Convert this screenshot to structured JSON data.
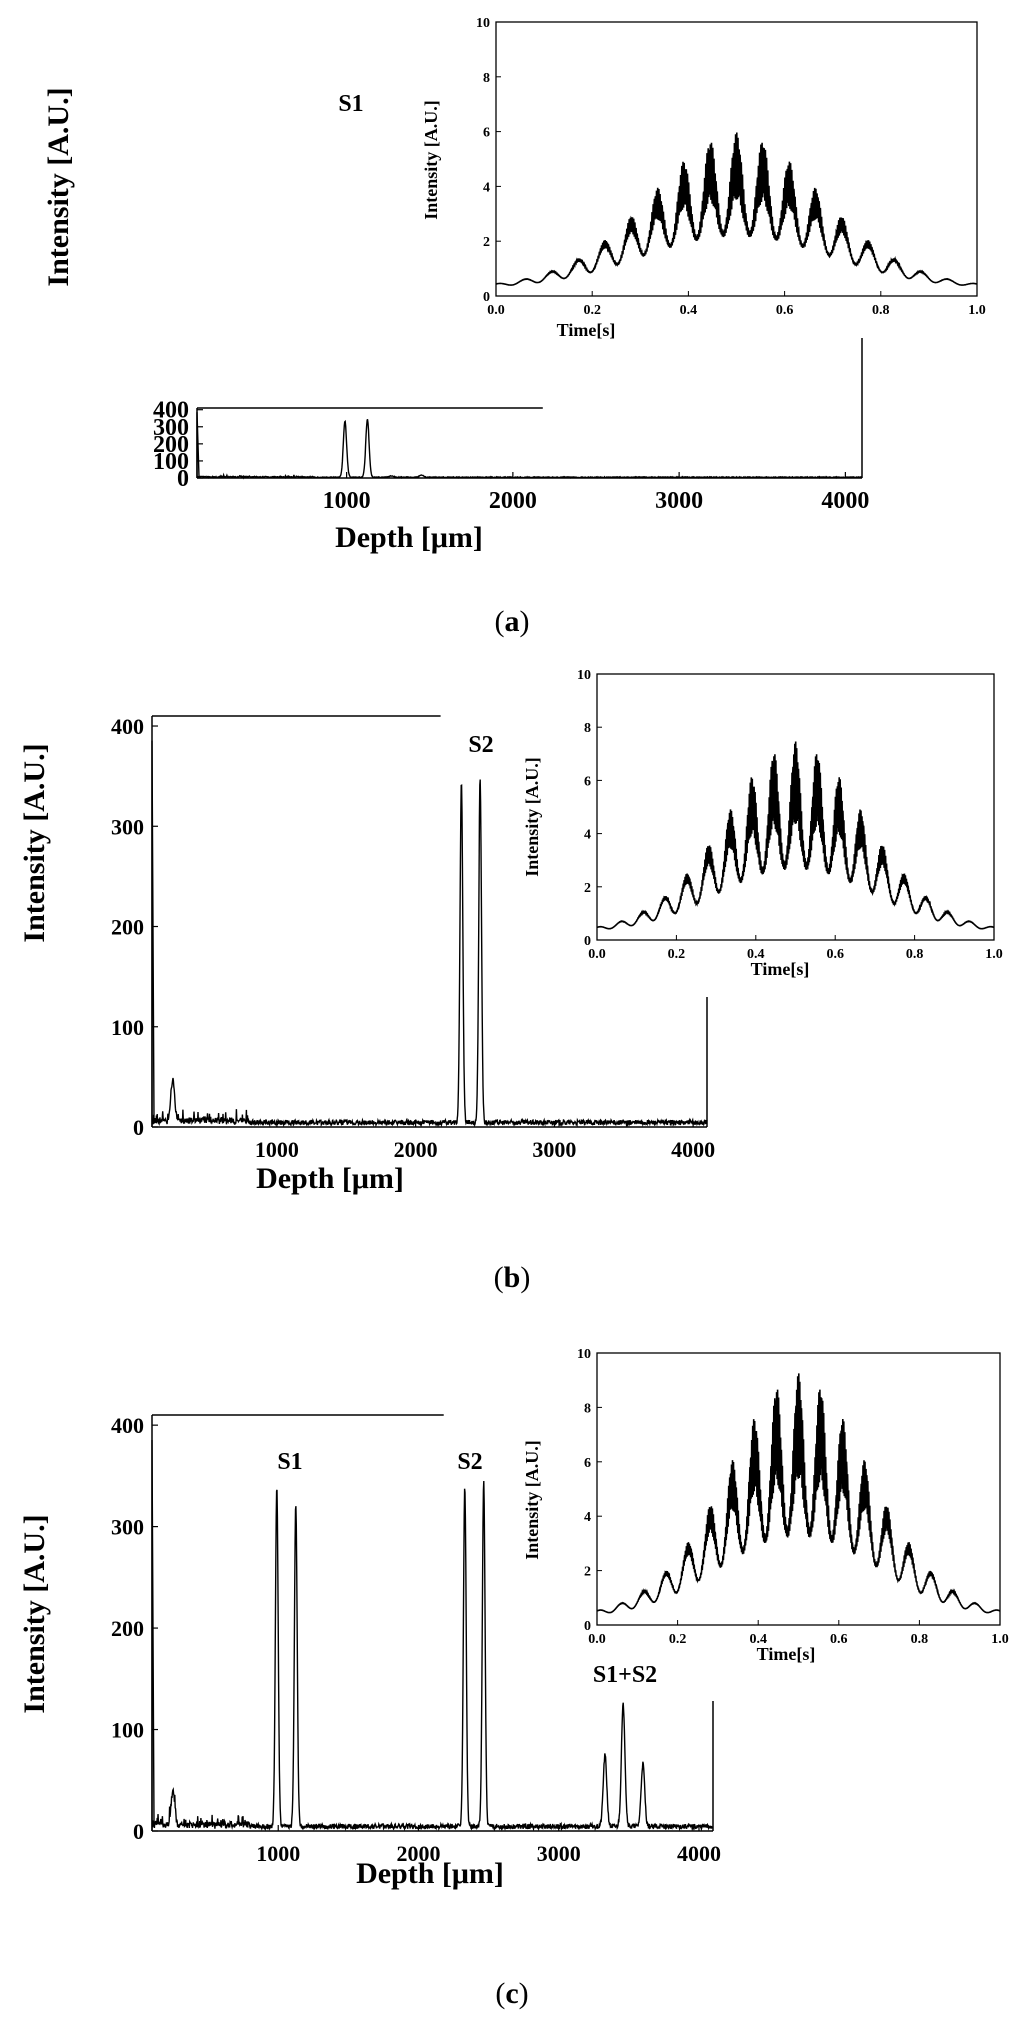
{
  "figure": {
    "panels": [
      {
        "id": "a",
        "caption_open": "(",
        "caption_letter": "a",
        "caption_close": ")"
      },
      {
        "id": "b",
        "caption_open": "(",
        "caption_letter": "b",
        "caption_close": ")"
      },
      {
        "id": "c",
        "caption_open": "(",
        "caption_letter": "c",
        "caption_close": ")"
      }
    ]
  },
  "chart_data": [
    {
      "panel": "a",
      "type": "line",
      "title": "",
      "xlabel": "Depth [μm]",
      "ylabel": "Intensity [A.U.]",
      "xlim": [
        100,
        4100
      ],
      "ylim": [
        0,
        410
      ],
      "xticks": [
        1000,
        2000,
        3000,
        4000
      ],
      "yticks": [
        0,
        100,
        200,
        300,
        400
      ],
      "peaks": [
        {
          "x": 990,
          "y": 330
        },
        {
          "x": 1125,
          "y": 340
        },
        {
          "x": 1450,
          "y": 12
        },
        {
          "x": 1270,
          "y": 8
        }
      ],
      "annotations": [
        {
          "text": "S1",
          "x": 1060,
          "y": 375
        }
      ],
      "inset": {
        "type": "line",
        "xlabel": "Time[s]",
        "ylabel": "Intensity [A.U.]",
        "xlim": [
          0,
          1
        ],
        "ylim": [
          0,
          10
        ],
        "xticks": [
          "0.0",
          "0.2",
          "0.4",
          "0.6",
          "0.8",
          "1.0"
        ],
        "yticks": [
          "0",
          "2",
          "4",
          "6",
          "8",
          "10"
        ],
        "envelope_peak": 3.8,
        "baseline": 0.3,
        "fringe_period": 0.055
      }
    },
    {
      "panel": "b",
      "type": "line",
      "title": "",
      "xlabel": "Depth [μm]",
      "ylabel": "Intensity [A.U.]",
      "xlim": [
        100,
        4100
      ],
      "ylim": [
        0,
        410
      ],
      "xticks": [
        1000,
        2000,
        3000,
        4000
      ],
      "yticks": [
        0,
        100,
        200,
        300,
        400
      ],
      "peaks": [
        {
          "x": 2330,
          "y": 338
        },
        {
          "x": 2465,
          "y": 343
        },
        {
          "x": 250,
          "y": 42
        }
      ],
      "annotations": [
        {
          "text": "S2",
          "x": 2400,
          "y": 378
        }
      ],
      "inset": {
        "type": "line",
        "xlabel": "Time[s]",
        "ylabel": "Intensity [A.U.]",
        "xlim": [
          0,
          1
        ],
        "ylim": [
          0,
          10
        ],
        "xticks": [
          "0.0",
          "0.2",
          "0.4",
          "0.6",
          "0.8",
          "1.0"
        ],
        "yticks": [
          "0",
          "2",
          "4",
          "6",
          "8",
          "10"
        ],
        "envelope_peak": 4.8,
        "baseline": 0.3,
        "fringe_period": 0.055
      }
    },
    {
      "panel": "c",
      "type": "line",
      "title": "",
      "xlabel": "Depth [μm]",
      "ylabel": "Intensity [A.U.]",
      "xlim": [
        100,
        4100
      ],
      "ylim": [
        0,
        410
      ],
      "xticks": [
        1000,
        2000,
        3000,
        4000
      ],
      "yticks": [
        0,
        100,
        200,
        300,
        400
      ],
      "peaks": [
        {
          "x": 990,
          "y": 335
        },
        {
          "x": 1125,
          "y": 318
        },
        {
          "x": 2330,
          "y": 335
        },
        {
          "x": 2465,
          "y": 340
        },
        {
          "x": 3330,
          "y": 70
        },
        {
          "x": 3460,
          "y": 120
        },
        {
          "x": 3600,
          "y": 62
        },
        {
          "x": 250,
          "y": 35
        }
      ],
      "annotations": [
        {
          "text": "S1",
          "x": 1060,
          "y": 365
        },
        {
          "text": "S2",
          "x": 2400,
          "y": 365
        },
        {
          "text": "S1+S2",
          "x": 3470,
          "y": 130
        }
      ],
      "inset": {
        "type": "line",
        "xlabel": "Time[s]",
        "ylabel": "Intensity [A.U.]",
        "xlim": [
          0,
          1
        ],
        "ylim": [
          0,
          10
        ],
        "xticks": [
          "0.0",
          "0.2",
          "0.4",
          "0.6",
          "0.8",
          "1.0"
        ],
        "yticks": [
          "0",
          "2",
          "4",
          "6",
          "8",
          "10"
        ],
        "envelope_peak": 6.0,
        "baseline": 0.3,
        "fringe_period": 0.055
      }
    }
  ]
}
